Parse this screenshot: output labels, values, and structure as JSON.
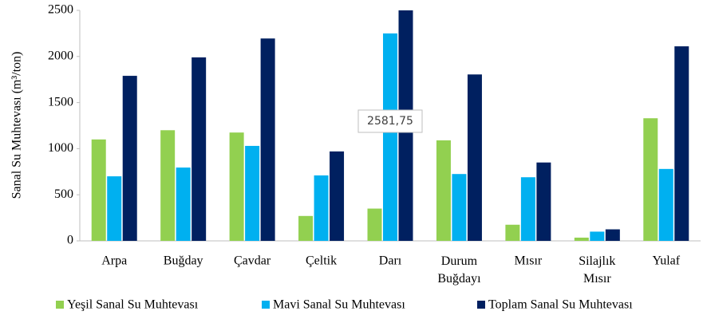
{
  "chart_data": {
    "type": "bar",
    "y_label": "Sanal Su Muhtevası (m³/ton)",
    "categories": [
      "Arpa",
      "Buğday",
      "Çavdar",
      "Çeltik",
      "Darı",
      "Durum Buğdayı",
      "Mısır",
      "Silajlık Mısır",
      "Yulaf"
    ],
    "series": [
      {
        "name": "Yeşil Sanal Su Muhtevası",
        "color": "#92d050",
        "values": [
          1100,
          1200,
          1175,
          270,
          350,
          1090,
          175,
          35,
          1330
        ]
      },
      {
        "name": "Mavi Sanal Su Muhtevası",
        "color": "#00b0f0",
        "values": [
          700,
          795,
          1030,
          710,
          2250,
          725,
          690,
          100,
          780
        ]
      },
      {
        "name": "Toplam Sanal Su Muhtevası",
        "color": "#002060",
        "values": [
          1790,
          1990,
          2195,
          970,
          2581.75,
          1805,
          850,
          125,
          2110
        ],
        "value_labels": [
          null,
          null,
          null,
          null,
          "2581,75",
          null,
          null,
          null,
          null
        ]
      }
    ],
    "ylim": [
      0,
      2500
    ],
    "yticks": [
      0,
      500,
      1000,
      1500,
      2000,
      2500
    ],
    "grid": false,
    "legend": "bottom"
  }
}
